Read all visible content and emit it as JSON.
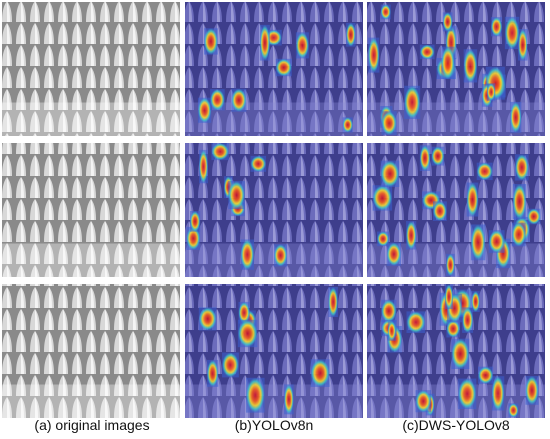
{
  "captions": [
    "(a) original images",
    "(b)YOLOv8n",
    "(c)DWS-YOLOv8"
  ]
}
